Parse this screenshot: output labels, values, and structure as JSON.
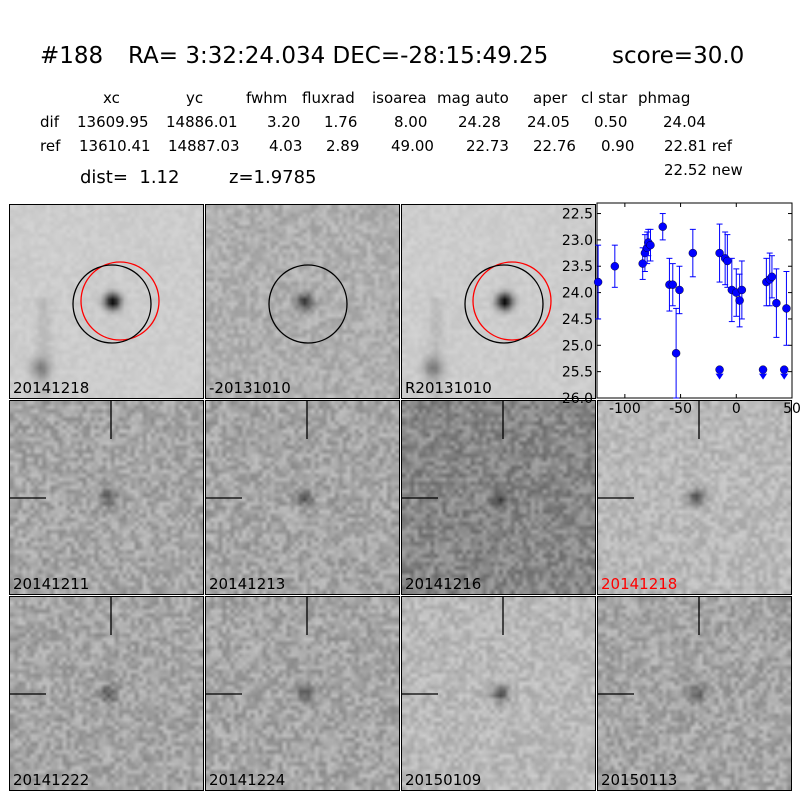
{
  "header": {
    "id": "#188",
    "coords": "RA= 3:32:24.034 DEC=-28:15:49.25",
    "score": "score=30.0"
  },
  "table": {
    "columns": [
      "xc",
      "yc",
      "fwhm",
      "fluxrad",
      "isoarea",
      "mag auto",
      "aper",
      "cl star",
      "phmag"
    ],
    "rows": [
      {
        "label": "dif",
        "values": [
          "13609.95",
          "14886.01",
          "3.20",
          "1.76",
          "8.00",
          "24.28",
          "24.05",
          "0.50",
          "24.04"
        ]
      },
      {
        "label": "ref",
        "values": [
          "13610.41",
          "14887.03",
          "4.03",
          "2.89",
          "49.00",
          "22.73",
          "22.76",
          "0.90",
          "22.81 ref"
        ]
      }
    ],
    "extra": "22.52 new"
  },
  "dist_line": {
    "dist": "dist=  1.12",
    "z": "z=1.9785"
  },
  "panels": [
    {
      "label": "20141218",
      "label_color": "#000000",
      "style": "ref_galaxy",
      "circles": [
        "red",
        "black"
      ],
      "crosshair": false,
      "seed": 11
    },
    {
      "label": "-20131010",
      "label_color": "#000000",
      "style": "diff",
      "circles": [
        "black"
      ],
      "crosshair": false,
      "seed": 23
    },
    {
      "label": "R20131010",
      "label_color": "#000000",
      "style": "ref_galaxy",
      "circles": [
        "red",
        "black"
      ],
      "crosshair": false,
      "seed": 37
    },
    {
      "label": "20141211",
      "label_color": "#000000",
      "style": "noise",
      "circles": [],
      "crosshair": true,
      "seed": 41
    },
    {
      "label": "20141213",
      "label_color": "#000000",
      "style": "noise",
      "circles": [],
      "crosshair": true,
      "seed": 53
    },
    {
      "label": "20141216",
      "label_color": "#000000",
      "style": "noise_dark",
      "circles": [],
      "crosshair": true,
      "seed": 67
    },
    {
      "label": "20141218",
      "label_color": "#ff0000",
      "style": "noise_light",
      "circles": [],
      "crosshair": true,
      "seed": 71
    },
    {
      "label": "20141222",
      "label_color": "#000000",
      "style": "noise",
      "circles": [],
      "crosshair": true,
      "seed": 83
    },
    {
      "label": "20141224",
      "label_color": "#000000",
      "style": "noise",
      "circles": [],
      "crosshair": true,
      "seed": 97
    },
    {
      "label": "20150109",
      "label_color": "#000000",
      "style": "noise_light",
      "circles": [],
      "crosshair": true,
      "seed": 101
    },
    {
      "label": "20150113",
      "label_color": "#000000",
      "style": "noise",
      "circles": [],
      "crosshair": true,
      "seed": 113
    }
  ],
  "chart_data": {
    "type": "scatter",
    "title": "",
    "xlabel": "",
    "ylabel": "",
    "xlim": [
      -125,
      50
    ],
    "ylim": [
      26.0,
      22.3
    ],
    "y_inverted": true,
    "x_ticks": [
      "-100",
      "-50",
      "0",
      "50"
    ],
    "y_ticks": [
      "22.5",
      "23.0",
      "23.5",
      "24.0",
      "24.5",
      "25.0",
      "25.5",
      "26.0"
    ],
    "color": "#0000ff",
    "points": [
      {
        "x": -124,
        "y": 23.8,
        "err": 0.7
      },
      {
        "x": -109,
        "y": 23.5,
        "err": 0.4
      },
      {
        "x": -84,
        "y": 23.45,
        "err": 0.3
      },
      {
        "x": -82,
        "y": 23.25,
        "err": 0.35
      },
      {
        "x": -80,
        "y": 23.15,
        "err": 0.3
      },
      {
        "x": -79,
        "y": 23.05,
        "err": 0.25
      },
      {
        "x": -77,
        "y": 23.1,
        "err": 0.3
      },
      {
        "x": -66,
        "y": 22.75,
        "err": 0.25
      },
      {
        "x": -60,
        "y": 23.85,
        "err": 0.5
      },
      {
        "x": -57,
        "y": 23.85,
        "err": 0.4
      },
      {
        "x": -54,
        "y": 25.15,
        "err": 0.85
      },
      {
        "x": -51,
        "y": 23.95,
        "err": 0.45
      },
      {
        "x": -39,
        "y": 23.25,
        "err": 0.45
      },
      {
        "x": -15,
        "y": 23.25,
        "err": 0.55
      },
      {
        "x": -10,
        "y": 23.35,
        "err": 0.5
      },
      {
        "x": -8,
        "y": 23.4,
        "err": 0.5
      },
      {
        "x": -4,
        "y": 23.95,
        "err": 0.6
      },
      {
        "x": 0,
        "y": 24.0,
        "err": 0.45
      },
      {
        "x": 3,
        "y": 24.15,
        "err": 0.5
      },
      {
        "x": 5,
        "y": 23.95,
        "err": 0.55
      },
      {
        "x": 27,
        "y": 23.8,
        "err": 0.45
      },
      {
        "x": 30,
        "y": 23.75,
        "err": 0.5
      },
      {
        "x": 32,
        "y": 23.7,
        "err": 0.4
      },
      {
        "x": 36,
        "y": 24.2,
        "err": 0.65
      },
      {
        "x": 45,
        "y": 24.3,
        "err": 0.7
      }
    ],
    "upper_limits": [
      {
        "x": -15,
        "y": 25.5
      },
      {
        "x": 24,
        "y": 25.5
      },
      {
        "x": 43,
        "y": 25.5
      }
    ]
  }
}
